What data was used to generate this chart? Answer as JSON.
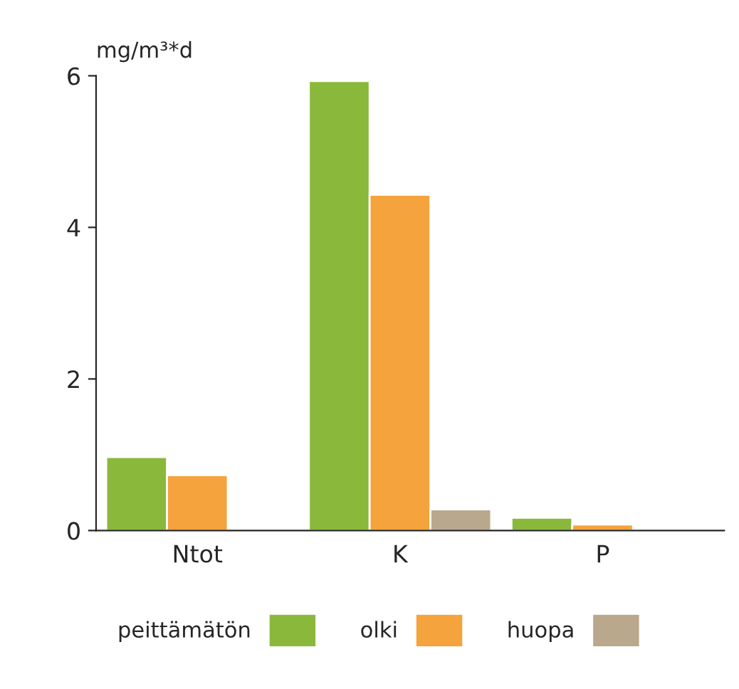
{
  "chart_data": {
    "type": "bar",
    "ylabel": "mg/m³*d",
    "categories": [
      "Ntot",
      "K",
      "P"
    ],
    "series": [
      {
        "name": "peittämätön",
        "color": "#8ab83a",
        "values": [
          0.97,
          5.93,
          0.17
        ]
      },
      {
        "name": "olki",
        "color": "#f5a33c",
        "values": [
          0.73,
          4.43,
          0.08
        ]
      },
      {
        "name": "huopa",
        "color": "#b9a88c",
        "values": [
          null,
          0.28,
          null
        ]
      }
    ],
    "ylim": [
      0,
      6
    ],
    "yticks": [
      0,
      2,
      4,
      6
    ],
    "grid": false,
    "legend": "bottom"
  }
}
